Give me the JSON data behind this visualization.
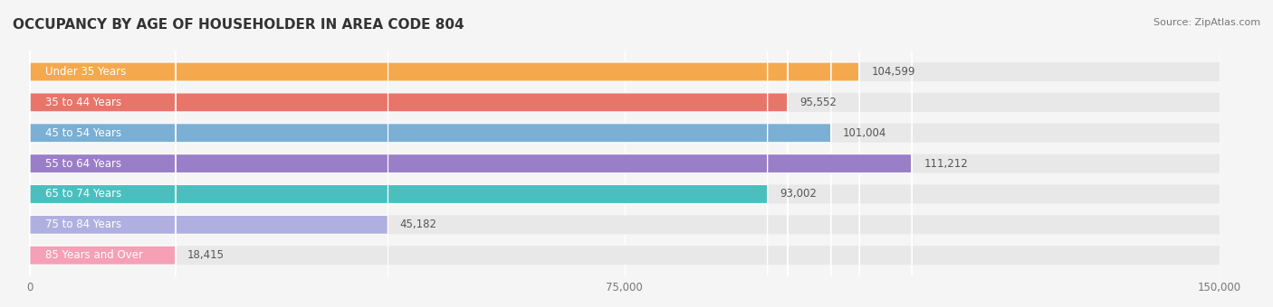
{
  "title": "OCCUPANCY BY AGE OF HOUSEHOLDER IN AREA CODE 804",
  "source": "Source: ZipAtlas.com",
  "categories": [
    "Under 35 Years",
    "35 to 44 Years",
    "45 to 54 Years",
    "55 to 64 Years",
    "65 to 74 Years",
    "75 to 84 Years",
    "85 Years and Over"
  ],
  "values": [
    104599,
    95552,
    101004,
    111212,
    93002,
    45182,
    18415
  ],
  "bar_colors": [
    "#F5A94E",
    "#E8756A",
    "#7BAFD4",
    "#9B7EC8",
    "#4BBFBF",
    "#B0B0E0",
    "#F5A0B5"
  ],
  "bar_edge_colors": [
    "#E8943A",
    "#D4594E",
    "#5A94C0",
    "#8060B5",
    "#2AABAB",
    "#9090D0",
    "#E080A0"
  ],
  "xlim": [
    0,
    150000
  ],
  "xticks": [
    0,
    75000,
    150000
  ],
  "xticklabels": [
    "0",
    "75,000",
    "150,000"
  ],
  "label_fontsize": 8.5,
  "value_fontsize": 8.5,
  "title_fontsize": 11,
  "background_color": "#f5f5f5",
  "bar_bg_color": "#e8e8e8"
}
